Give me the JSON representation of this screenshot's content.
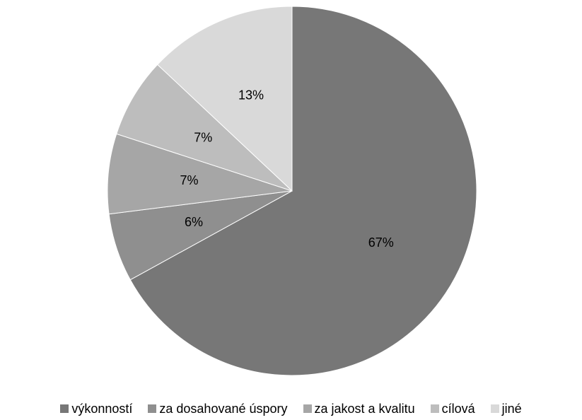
{
  "chart_data": {
    "type": "pie",
    "title": "",
    "start_angle_deg": 0,
    "direction": "clockwise",
    "slices": [
      {
        "label": "výkonností",
        "value": 67,
        "value_label": "67%",
        "color": "#777777"
      },
      {
        "label": "za dosahované úspory",
        "value": 6,
        "value_label": "6%",
        "color": "#8f8f8f"
      },
      {
        "label": "za jakost a kvalitu",
        "value": 7,
        "value_label": "7%",
        "color": "#a6a6a6"
      },
      {
        "label": "cílová",
        "value": 7,
        "value_label": "7%",
        "color": "#bdbdbd"
      },
      {
        "label": "jiné",
        "value": 13,
        "value_label": "13%",
        "color": "#d9d9d9"
      }
    ],
    "legend_position": "bottom"
  }
}
